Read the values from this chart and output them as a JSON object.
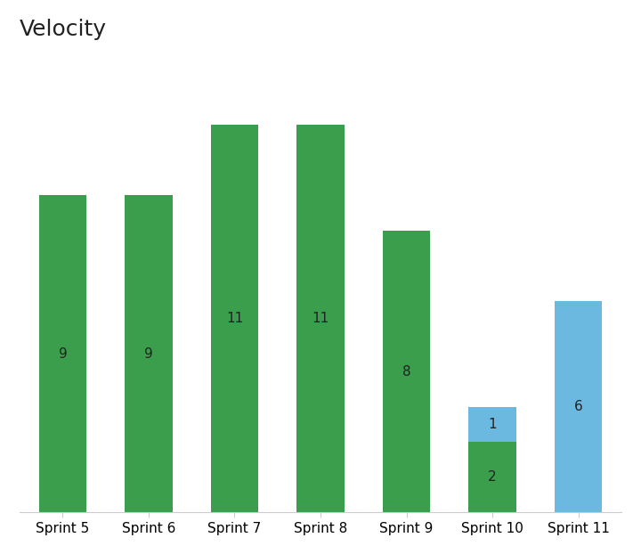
{
  "title": "Velocity",
  "categories": [
    "Sprint 5",
    "Sprint 6",
    "Sprint 7",
    "Sprint 8",
    "Sprint 9",
    "Sprint 10",
    "Sprint 11"
  ],
  "completed": [
    9,
    9,
    11,
    11,
    8,
    2,
    0
  ],
  "in_progress": [
    0,
    0,
    0,
    0,
    0,
    1,
    6
  ],
  "color_completed": "#3a9e4c",
  "color_in_progress": "#6bb8e0",
  "bar_width": 0.55,
  "title_fontsize": 18,
  "label_fontsize": 11,
  "tick_fontsize": 11,
  "label_color": "#222222",
  "ylim": [
    0,
    13
  ],
  "background_color": "#ffffff",
  "border_color": "#cccccc"
}
